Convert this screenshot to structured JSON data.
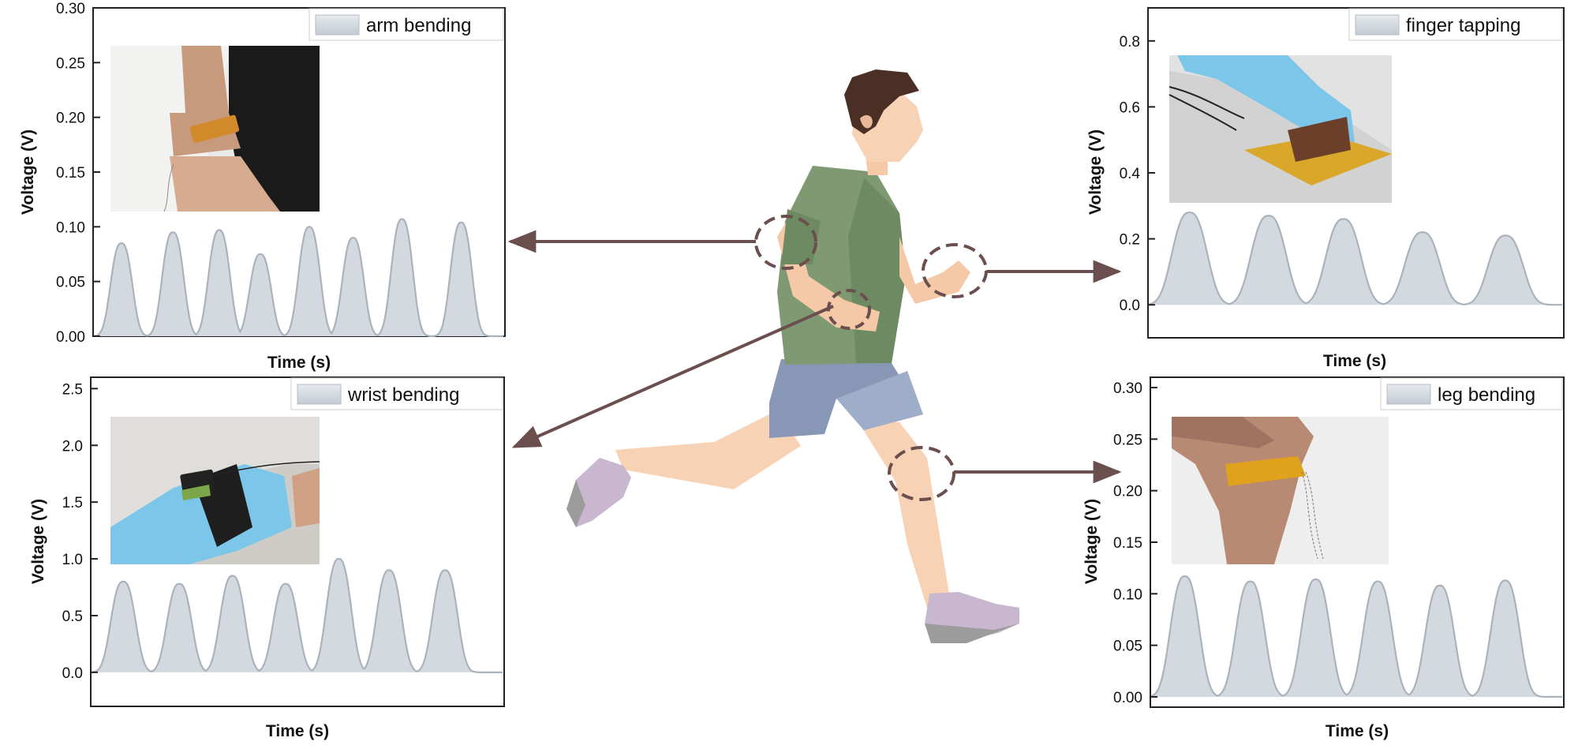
{
  "chart_data": [
    {
      "type": "area",
      "legend": "arm bending",
      "legend_position": "top-right",
      "inset_photo": "arm-bending-sensor-photo",
      "ylabel": "Voltage (V)",
      "xlabel": "Time (s)",
      "ylim": [
        0,
        0.3
      ],
      "yticks": [
        "0.00",
        "0.05",
        "0.10",
        "0.15",
        "0.20",
        "0.25",
        "0.30"
      ],
      "xlim": [
        0,
        8
      ],
      "peaks": [
        {
          "t": 0.55,
          "v": 0.085
        },
        {
          "t": 1.55,
          "v": 0.095
        },
        {
          "t": 2.45,
          "v": 0.097
        },
        {
          "t": 3.25,
          "v": 0.075
        },
        {
          "t": 4.2,
          "v": 0.1
        },
        {
          "t": 5.05,
          "v": 0.09
        },
        {
          "t": 6.0,
          "v": 0.107
        },
        {
          "t": 7.15,
          "v": 0.104
        }
      ],
      "fill_color": "#d4d9df",
      "line_color": "#aab3bd"
    },
    {
      "type": "area",
      "legend": "finger tapping",
      "legend_position": "top-right",
      "inset_photo": "finger-tapping-sensor-photo",
      "ylabel": "Voltage (V)",
      "xlabel": "Time (s)",
      "ylim": [
        -0.1,
        0.9
      ],
      "yticks": [
        "0.0",
        "0.2",
        "0.4",
        "0.6",
        "0.8"
      ],
      "xlim": [
        0,
        5
      ],
      "peaks": [
        {
          "t": 0.5,
          "v": 0.28
        },
        {
          "t": 1.45,
          "v": 0.27
        },
        {
          "t": 2.35,
          "v": 0.26
        },
        {
          "t": 3.3,
          "v": 0.22
        },
        {
          "t": 4.3,
          "v": 0.21
        }
      ],
      "fill_color": "#d4d9df",
      "line_color": "#aab3bd"
    },
    {
      "type": "area",
      "legend": "wrist bending",
      "legend_position": "top-right",
      "inset_photo": "wrist-bending-sensor-photo",
      "ylabel": "Voltage (V)",
      "xlabel": "Time (s)",
      "ylim": [
        -0.3,
        2.6
      ],
      "yticks": [
        "0.0",
        "0.5",
        "1.0",
        "1.5",
        "2.0",
        "2.5"
      ],
      "xlim": [
        0,
        7
      ],
      "peaks": [
        {
          "t": 0.55,
          "v": 0.8
        },
        {
          "t": 1.5,
          "v": 0.78
        },
        {
          "t": 2.4,
          "v": 0.85
        },
        {
          "t": 3.3,
          "v": 0.78
        },
        {
          "t": 4.2,
          "v": 1.0
        },
        {
          "t": 5.05,
          "v": 0.9
        },
        {
          "t": 6.0,
          "v": 0.9
        }
      ],
      "fill_color": "#d4d9df",
      "line_color": "#aab3bd"
    },
    {
      "type": "area",
      "legend": "leg bending",
      "legend_position": "top-right",
      "inset_photo": "leg-bending-sensor-photo",
      "ylabel": "Voltage (V)",
      "xlabel": "Time (s)",
      "ylim": [
        -0.01,
        0.31
      ],
      "yticks": [
        "0.00",
        "0.05",
        "0.10",
        "0.15",
        "0.20",
        "0.25",
        "0.30"
      ],
      "xlim": [
        0,
        6
      ],
      "peaks": [
        {
          "t": 0.5,
          "v": 0.117
        },
        {
          "t": 1.45,
          "v": 0.112
        },
        {
          "t": 2.4,
          "v": 0.114
        },
        {
          "t": 3.3,
          "v": 0.112
        },
        {
          "t": 4.2,
          "v": 0.108
        },
        {
          "t": 5.15,
          "v": 0.113
        }
      ],
      "fill_color": "#d4d9df",
      "line_color": "#aab3bd"
    }
  ],
  "illustration": {
    "figure": "running-person",
    "callouts": [
      "elbow",
      "finger",
      "wrist",
      "knee"
    ],
    "arrow_color": "#6b4f4f"
  }
}
